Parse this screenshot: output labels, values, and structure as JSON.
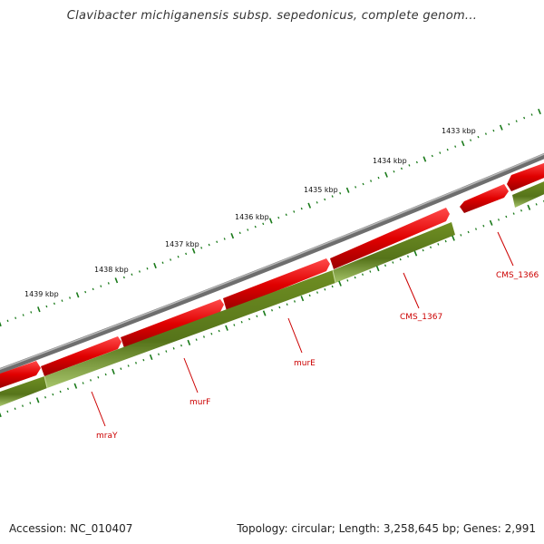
{
  "title": "Clavibacter michiganensis subsp. sepedonicus, complete genom...",
  "footer": {
    "accession": "Accession: NC_010407",
    "summary": "Topology: circular; Length: 3,258,645 bp; Genes: 2,991"
  },
  "colors": {
    "backbone": "#7a7a7a",
    "cds": "#e01010",
    "gene": "#5c7a1a",
    "ticks": "#1a7a1a",
    "label": "#cc0000"
  },
  "kbp_markers": [
    {
      "label": "1433 kbp",
      "kbp": 1433
    },
    {
      "label": "1434 kbp",
      "kbp": 1434
    },
    {
      "label": "1435 kbp",
      "kbp": 1435
    },
    {
      "label": "1436 kbp",
      "kbp": 1436
    },
    {
      "label": "1437 kbp",
      "kbp": 1437
    },
    {
      "label": "1438 kbp",
      "kbp": 1438
    },
    {
      "label": "1439 kbp",
      "kbp": 1439
    }
  ],
  "gene_labels": [
    {
      "name": "CMS_1366"
    },
    {
      "name": "CMS_1367"
    },
    {
      "name": "murE"
    },
    {
      "name": "murF"
    },
    {
      "name": "mraY"
    }
  ]
}
